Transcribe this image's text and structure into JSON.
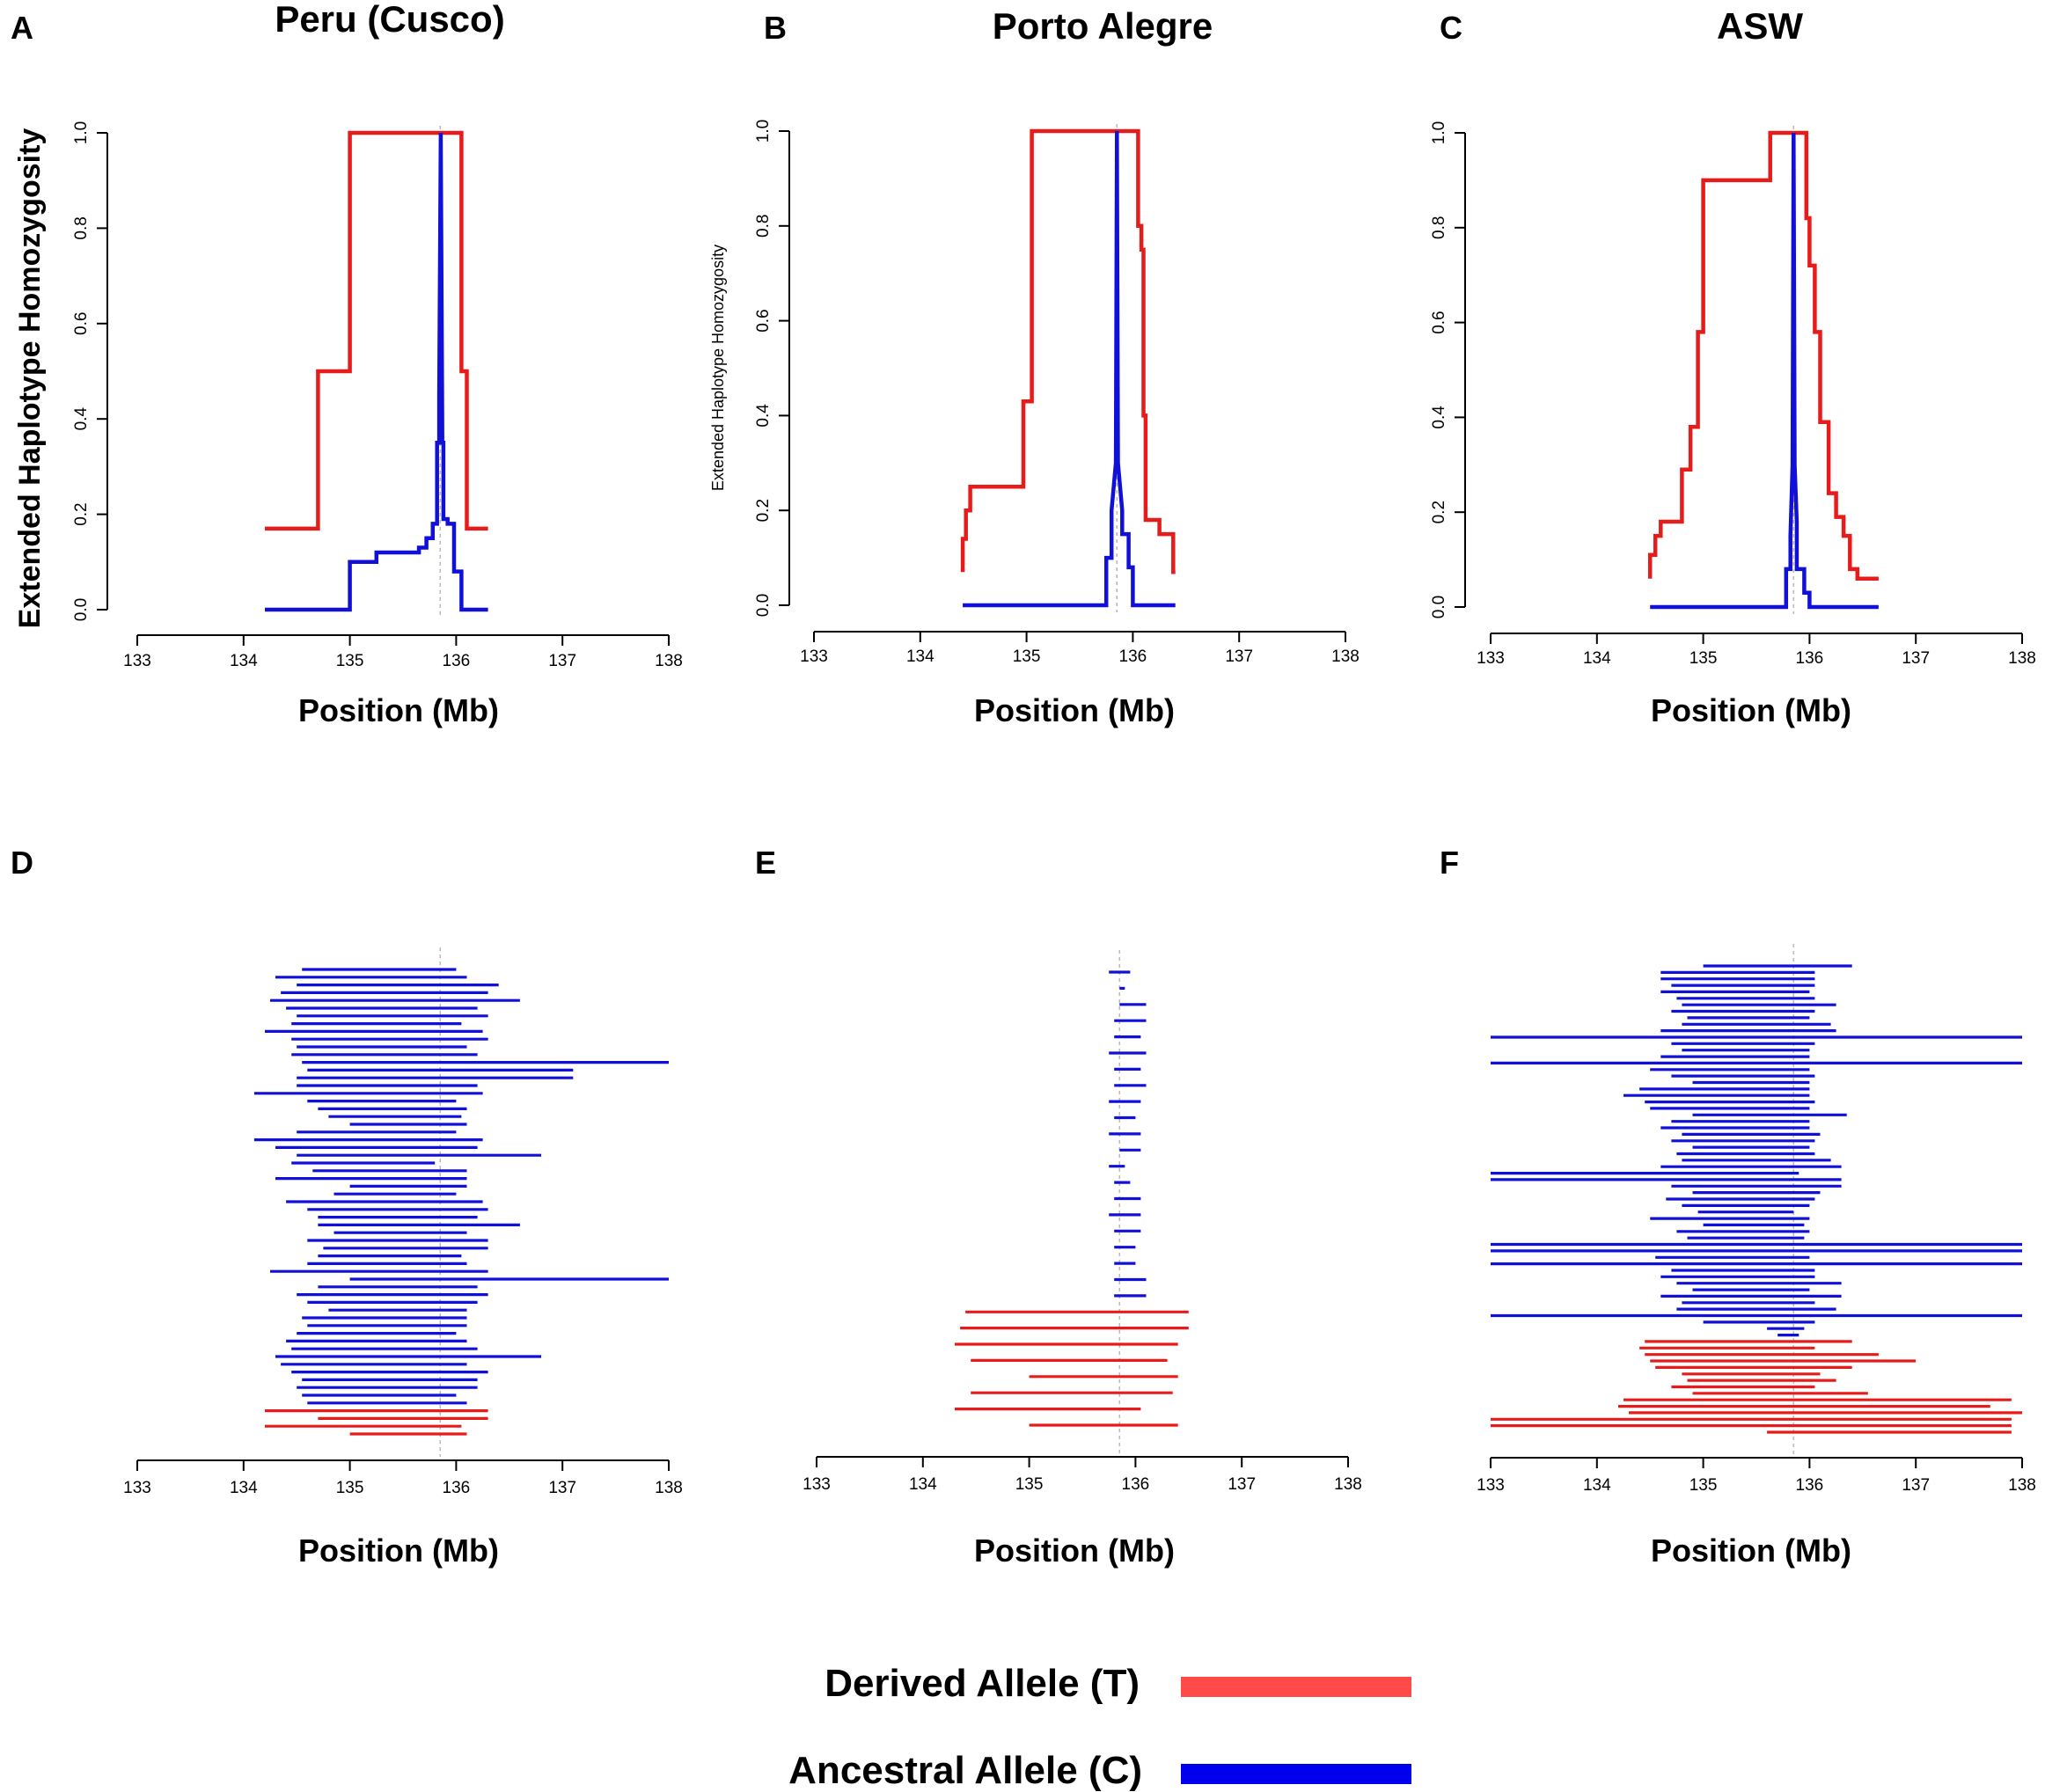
{
  "colors": {
    "derived": "#e81b1b",
    "ancestral": "#1010d8",
    "legend_derived": "#ff4a4a",
    "legend_ancestral": "#0000ee",
    "refline": "#bbbbbb"
  },
  "legend": {
    "derived_label": "Derived Allele (T)",
    "ancestral_label": "Ancestral Allele (C)"
  },
  "chart_data": [
    {
      "panel": "A",
      "title": "Peru (Cusco)",
      "type": "line",
      "xlabel": "Position (Mb)",
      "ylabel": "Extended Haplotype Homozygosity",
      "xlim": [
        133,
        138
      ],
      "ylim": [
        0,
        1
      ],
      "xticks": [
        "133",
        "134",
        "135",
        "136",
        "137",
        "138"
      ],
      "yticks": [
        "0.0",
        "0.2",
        "0.4",
        "0.6",
        "0.8",
        "1.0"
      ],
      "core_position": 135.85,
      "series": [
        {
          "name": "Derived Allele (T)",
          "x": [
            134.2,
            134.7,
            134.7,
            135.0,
            135.0,
            136.05,
            136.05,
            136.1,
            136.1,
            136.3
          ],
          "y": [
            0.17,
            0.17,
            0.5,
            0.5,
            1.0,
            1.0,
            0.5,
            0.5,
            0.17,
            0.17
          ]
        },
        {
          "name": "Ancestral Allele (C)",
          "x": [
            134.2,
            135.0,
            135.0,
            135.25,
            135.25,
            135.65,
            135.65,
            135.72,
            135.72,
            135.78,
            135.78,
            135.82,
            135.82,
            135.84,
            135.84,
            135.855,
            135.87,
            135.88,
            135.88,
            135.92,
            135.92,
            135.98,
            135.98,
            136.05,
            136.05,
            136.3
          ],
          "y": [
            0.0,
            0.0,
            0.1,
            0.1,
            0.12,
            0.12,
            0.13,
            0.13,
            0.15,
            0.15,
            0.18,
            0.18,
            0.35,
            0.35,
            0.45,
            1.0,
            0.35,
            0.35,
            0.19,
            0.19,
            0.18,
            0.18,
            0.08,
            0.08,
            0.0,
            0.0
          ]
        }
      ]
    },
    {
      "panel": "B",
      "title": "Porto Alegre",
      "type": "line",
      "xlabel": "Position (Mb)",
      "ylabel": "Extended Haplotype Homozygosity",
      "xlim": [
        133,
        138
      ],
      "ylim": [
        0,
        1
      ],
      "xticks": [
        "133",
        "134",
        "135",
        "136",
        "137",
        "138"
      ],
      "yticks": [
        "0.0",
        "0.2",
        "0.4",
        "0.6",
        "0.8",
        "1.0"
      ],
      "core_position": 135.85,
      "series": [
        {
          "name": "Derived Allele (T)",
          "x": [
            134.4,
            134.4,
            134.43,
            134.43,
            134.47,
            134.47,
            134.97,
            134.97,
            135.05,
            135.05,
            136.05,
            136.05,
            136.08,
            136.08,
            136.1,
            136.1,
            136.12,
            136.12,
            136.25,
            136.25,
            136.38,
            136.38,
            136.4
          ],
          "y": [
            0.07,
            0.14,
            0.14,
            0.2,
            0.2,
            0.25,
            0.25,
            0.43,
            0.43,
            1.0,
            1.0,
            0.8,
            0.8,
            0.75,
            0.75,
            0.4,
            0.4,
            0.18,
            0.18,
            0.15,
            0.15,
            0.07,
            0.07
          ]
        },
        {
          "name": "Ancestral Allele (C)",
          "x": [
            134.4,
            135.75,
            135.75,
            135.8,
            135.8,
            135.84,
            135.85,
            135.86,
            135.9,
            135.9,
            135.96,
            135.96,
            136.0,
            136.0,
            136.4
          ],
          "y": [
            0.0,
            0.0,
            0.1,
            0.1,
            0.2,
            0.3,
            1.0,
            0.3,
            0.2,
            0.15,
            0.15,
            0.08,
            0.08,
            0.0,
            0.0
          ]
        }
      ]
    },
    {
      "panel": "C",
      "title": "ASW",
      "type": "line",
      "xlabel": "Position (Mb)",
      "ylabel": "",
      "xlim": [
        133,
        138
      ],
      "ylim": [
        0,
        1
      ],
      "xticks": [
        "133",
        "134",
        "135",
        "136",
        "137",
        "138"
      ],
      "yticks": [
        "0.0",
        "0.2",
        "0.4",
        "0.6",
        "0.8",
        "1.0"
      ],
      "core_position": 135.85,
      "series": [
        {
          "name": "Derived Allele (T)",
          "x": [
            134.5,
            134.5,
            134.55,
            134.55,
            134.6,
            134.6,
            134.8,
            134.8,
            134.88,
            134.88,
            134.95,
            134.95,
            135.0,
            135.0,
            135.63,
            135.63,
            135.97,
            135.97,
            136.0,
            136.0,
            136.05,
            136.05,
            136.1,
            136.1,
            136.18,
            136.18,
            136.25,
            136.25,
            136.32,
            136.32,
            136.38,
            136.38,
            136.45,
            136.45,
            136.65
          ],
          "y": [
            0.06,
            0.11,
            0.11,
            0.15,
            0.15,
            0.18,
            0.18,
            0.29,
            0.29,
            0.38,
            0.38,
            0.58,
            0.58,
            0.9,
            0.9,
            1.0,
            1.0,
            0.82,
            0.82,
            0.72,
            0.72,
            0.58,
            0.58,
            0.39,
            0.39,
            0.24,
            0.24,
            0.19,
            0.19,
            0.15,
            0.15,
            0.08,
            0.08,
            0.06,
            0.06
          ]
        },
        {
          "name": "Ancestral Allele (C)",
          "x": [
            134.5,
            135.78,
            135.78,
            135.82,
            135.82,
            135.84,
            135.85,
            135.86,
            135.88,
            135.88,
            135.95,
            135.95,
            136.0,
            136.0,
            136.65
          ],
          "y": [
            0.0,
            0.0,
            0.08,
            0.08,
            0.15,
            0.3,
            1.0,
            0.3,
            0.18,
            0.08,
            0.08,
            0.03,
            0.03,
            0.0,
            0.0
          ]
        }
      ]
    },
    {
      "panel": "D",
      "title": "",
      "type": "haplotype-segments",
      "xlabel": "Position (Mb)",
      "xlim": [
        133,
        138
      ],
      "xticks": [
        "133",
        "134",
        "135",
        "136",
        "137",
        "138"
      ],
      "core_position": 135.85,
      "haplotypes": [
        [
          "a",
          134.55,
          136.0
        ],
        [
          "a",
          134.3,
          136.1
        ],
        [
          "a",
          134.5,
          136.4
        ],
        [
          "a",
          134.35,
          136.3
        ],
        [
          "a",
          134.25,
          136.6
        ],
        [
          "a",
          134.4,
          136.2
        ],
        [
          "a",
          134.5,
          136.3
        ],
        [
          "a",
          134.45,
          136.05
        ],
        [
          "a",
          134.2,
          136.25
        ],
        [
          "a",
          134.45,
          136.3
        ],
        [
          "a",
          134.5,
          136.1
        ],
        [
          "a",
          134.45,
          136.2
        ],
        [
          "a",
          134.55,
          138.0
        ],
        [
          "a",
          134.6,
          137.1
        ],
        [
          "a",
          134.5,
          137.1
        ],
        [
          "a",
          134.5,
          136.2
        ],
        [
          "a",
          134.1,
          136.25
        ],
        [
          "a",
          134.6,
          136.0
        ],
        [
          "a",
          134.7,
          136.1
        ],
        [
          "a",
          134.8,
          136.05
        ],
        [
          "a",
          135.0,
          136.1
        ],
        [
          "a",
          134.5,
          136.0
        ],
        [
          "a",
          134.1,
          136.25
        ],
        [
          "a",
          134.3,
          136.2
        ],
        [
          "a",
          134.5,
          136.8
        ],
        [
          "a",
          134.45,
          135.8
        ],
        [
          "a",
          134.65,
          136.1
        ],
        [
          "a",
          134.3,
          136.1
        ],
        [
          "a",
          135.0,
          136.1
        ],
        [
          "a",
          134.85,
          136.0
        ],
        [
          "a",
          134.4,
          136.25
        ],
        [
          "a",
          134.6,
          136.3
        ],
        [
          "a",
          134.7,
          136.2
        ],
        [
          "a",
          134.7,
          136.6
        ],
        [
          "a",
          134.85,
          136.1
        ],
        [
          "a",
          134.6,
          136.3
        ],
        [
          "a",
          134.75,
          136.3
        ],
        [
          "a",
          134.7,
          136.05
        ],
        [
          "a",
          134.6,
          136.1
        ],
        [
          "a",
          134.25,
          136.3
        ],
        [
          "a",
          135.0,
          138.0
        ],
        [
          "a",
          134.7,
          136.2
        ],
        [
          "a",
          134.5,
          136.3
        ],
        [
          "a",
          134.6,
          136.2
        ],
        [
          "a",
          134.8,
          136.1
        ],
        [
          "a",
          134.55,
          136.1
        ],
        [
          "a",
          134.6,
          136.1
        ],
        [
          "a",
          134.5,
          136.0
        ],
        [
          "a",
          134.4,
          136.1
        ],
        [
          "a",
          134.45,
          136.2
        ],
        [
          "a",
          134.3,
          136.8
        ],
        [
          "a",
          134.35,
          136.1
        ],
        [
          "a",
          134.45,
          136.3
        ],
        [
          "a",
          134.55,
          136.2
        ],
        [
          "a",
          134.5,
          136.2
        ],
        [
          "a",
          134.55,
          136.0
        ],
        [
          "a",
          134.6,
          136.1
        ],
        [
          "d",
          134.2,
          136.3
        ],
        [
          "d",
          134.7,
          136.3
        ],
        [
          "d",
          134.2,
          136.05
        ],
        [
          "d",
          135.0,
          136.1
        ]
      ]
    },
    {
      "panel": "E",
      "title": "",
      "type": "haplotype-segments",
      "xlabel": "Position (Mb)",
      "xlim": [
        133,
        138
      ],
      "xticks": [
        "133",
        "134",
        "135",
        "136",
        "137",
        "138"
      ],
      "core_position": 135.85,
      "haplotypes": [
        [
          "a",
          135.75,
          135.95
        ],
        [
          "a",
          135.85,
          135.9
        ],
        [
          "a",
          135.85,
          136.1
        ],
        [
          "a",
          135.8,
          136.1
        ],
        [
          "a",
          135.8,
          136.05
        ],
        [
          "a",
          135.75,
          136.1
        ],
        [
          "a",
          135.8,
          136.05
        ],
        [
          "a",
          135.8,
          136.1
        ],
        [
          "a",
          135.75,
          136.05
        ],
        [
          "a",
          135.8,
          136.0
        ],
        [
          "a",
          135.75,
          136.05
        ],
        [
          "a",
          135.85,
          136.05
        ],
        [
          "a",
          135.75,
          135.9
        ],
        [
          "a",
          135.8,
          135.95
        ],
        [
          "a",
          135.8,
          136.05
        ],
        [
          "a",
          135.75,
          136.05
        ],
        [
          "a",
          135.8,
          136.05
        ],
        [
          "a",
          135.8,
          136.0
        ],
        [
          "a",
          135.8,
          136.0
        ],
        [
          "a",
          135.8,
          136.1
        ],
        [
          "a",
          135.8,
          136.1
        ],
        [
          "d",
          134.4,
          136.5
        ],
        [
          "d",
          134.35,
          136.5
        ],
        [
          "d",
          134.3,
          136.4
        ],
        [
          "d",
          134.45,
          136.3
        ],
        [
          "d",
          135.0,
          136.4
        ],
        [
          "d",
          134.45,
          136.35
        ],
        [
          "d",
          134.3,
          136.05
        ],
        [
          "d",
          135.0,
          136.4
        ]
      ]
    },
    {
      "panel": "F",
      "title": "",
      "type": "haplotype-segments",
      "xlabel": "Position (Mb)",
      "xlim": [
        133,
        138
      ],
      "xticks": [
        "133",
        "134",
        "135",
        "136",
        "137",
        "138"
      ],
      "core_position": 135.85,
      "haplotypes": [
        [
          "a",
          135.0,
          136.4
        ],
        [
          "a",
          134.6,
          136.05
        ],
        [
          "a",
          134.6,
          136.05
        ],
        [
          "a",
          134.7,
          136.05
        ],
        [
          "a",
          134.6,
          136.0
        ],
        [
          "a",
          134.75,
          136.05
        ],
        [
          "a",
          134.8,
          136.25
        ],
        [
          "a",
          134.7,
          136.05
        ],
        [
          "a",
          134.85,
          136.0
        ],
        [
          "a",
          134.8,
          136.2
        ],
        [
          "a",
          134.6,
          136.25
        ],
        [
          "a",
          133.0,
          138.0
        ],
        [
          "a",
          134.7,
          136.05
        ],
        [
          "a",
          134.8,
          136.0
        ],
        [
          "a",
          134.6,
          136.0
        ],
        [
          "a",
          133.0,
          138.0
        ],
        [
          "a",
          134.5,
          136.0
        ],
        [
          "a",
          134.7,
          136.05
        ],
        [
          "a",
          134.9,
          136.0
        ],
        [
          "a",
          134.4,
          136.0
        ],
        [
          "a",
          134.25,
          136.0
        ],
        [
          "a",
          134.45,
          136.05
        ],
        [
          "a",
          134.5,
          136.0
        ],
        [
          "a",
          134.9,
          136.35
        ],
        [
          "a",
          134.7,
          136.0
        ],
        [
          "a",
          134.6,
          136.0
        ],
        [
          "a",
          134.8,
          136.1
        ],
        [
          "a",
          134.7,
          136.05
        ],
        [
          "a",
          134.9,
          136.0
        ],
        [
          "a",
          134.75,
          136.05
        ],
        [
          "a",
          134.8,
          136.2
        ],
        [
          "a",
          134.6,
          136.3
        ],
        [
          "a",
          133.0,
          135.9
        ],
        [
          "a",
          133.0,
          136.3
        ],
        [
          "a",
          134.7,
          136.3
        ],
        [
          "a",
          134.9,
          136.1
        ],
        [
          "a",
          134.65,
          136.05
        ],
        [
          "a",
          134.8,
          136.0
        ],
        [
          "a",
          134.95,
          135.85
        ],
        [
          "a",
          134.5,
          136.0
        ],
        [
          "a",
          135.0,
          135.95
        ],
        [
          "a",
          134.75,
          136.0
        ],
        [
          "a",
          134.85,
          135.95
        ],
        [
          "a",
          133.0,
          138.0
        ],
        [
          "a",
          133.0,
          138.0
        ],
        [
          "a",
          134.55,
          136.0
        ],
        [
          "a",
          133.0,
          138.0
        ],
        [
          "a",
          134.7,
          136.05
        ],
        [
          "a",
          134.6,
          136.05
        ],
        [
          "a",
          134.75,
          136.3
        ],
        [
          "a",
          134.9,
          136.0
        ],
        [
          "a",
          134.6,
          136.3
        ],
        [
          "a",
          134.8,
          136.05
        ],
        [
          "a",
          134.75,
          136.25
        ],
        [
          "a",
          133.0,
          138.0
        ],
        [
          "a",
          135.0,
          136.05
        ],
        [
          "a",
          135.6,
          135.95
        ],
        [
          "a",
          135.7,
          135.9
        ],
        [
          "d",
          134.45,
          136.4
        ],
        [
          "d",
          134.4,
          136.05
        ],
        [
          "d",
          134.45,
          136.65
        ],
        [
          "d",
          134.5,
          137.0
        ],
        [
          "d",
          134.55,
          136.4
        ],
        [
          "d",
          134.8,
          136.1
        ],
        [
          "d",
          134.85,
          136.25
        ],
        [
          "d",
          134.7,
          136.05
        ],
        [
          "d",
          134.9,
          136.55
        ],
        [
          "d",
          134.25,
          137.9
        ],
        [
          "d",
          134.2,
          137.7
        ],
        [
          "d",
          134.3,
          138.0
        ],
        [
          "d",
          133.0,
          137.9
        ],
        [
          "d",
          133.0,
          137.9
        ],
        [
          "d",
          135.6,
          137.9
        ]
      ]
    }
  ]
}
